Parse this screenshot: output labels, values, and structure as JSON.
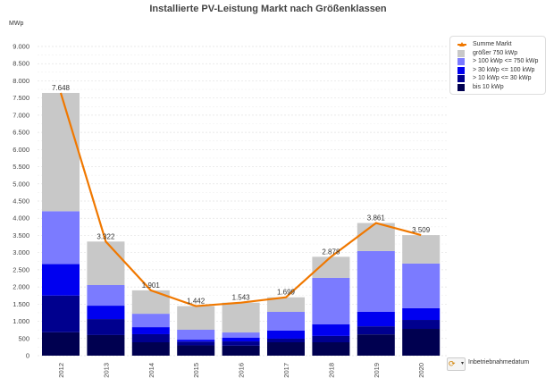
{
  "chart": {
    "title": "Installierte PV-Leistung Markt nach Größenklassen",
    "unit": "MWp",
    "drill_label": "Inbetriebnahmedatum"
  },
  "legend": [
    {
      "label": "Summe Markt",
      "color": "#f07800",
      "kind": "line"
    },
    {
      "label": "größer 750 kWp",
      "color": "#c8c8c8",
      "kind": "box"
    },
    {
      "label": "> 100 kWp <= 750 kWp",
      "color": "#7b7bff",
      "kind": "box"
    },
    {
      "label": "> 30 kWp <= 100 kWp",
      "color": "#0000f0",
      "kind": "box"
    },
    {
      "label": "> 10 kWp <= 30 kWp",
      "color": "#00008e",
      "kind": "box"
    },
    {
      "label": "bis 10 kWp",
      "color": "#000050",
      "kind": "box"
    }
  ],
  "chart_data": {
    "type": "bar",
    "stacked": true,
    "title": "Installierte PV-Leistung Markt nach Größenklassen",
    "xlabel": "",
    "ylabel": "MWp",
    "ylim": [
      0,
      9000
    ],
    "yticks": [
      0,
      500,
      1000,
      1500,
      2000,
      2500,
      3000,
      3500,
      4000,
      4500,
      5000,
      5500,
      6000,
      6500,
      7000,
      7500,
      8000,
      8500,
      9000
    ],
    "ytick_labels": [
      "0",
      "500",
      "1.000",
      "1.500",
      "2.000",
      "2.500",
      "3.000",
      "3.500",
      "4.000",
      "4.500",
      "5.000",
      "5.500",
      "6.000",
      "6.500",
      "7.000",
      "7.500",
      "8.000",
      "8.500",
      "9.000"
    ],
    "grid": true,
    "legend_position": "right",
    "categories": [
      "2012",
      "2013",
      "2014",
      "2015",
      "2016",
      "2017",
      "2018",
      "2019",
      "2020"
    ],
    "series": [
      {
        "name": "bis 10 kWp",
        "color": "#000050",
        "values": [
          680,
          600,
          390,
          300,
          290,
          390,
          390,
          620,
          780
        ]
      },
      {
        "name": "> 10 kWp <= 30 kWp",
        "color": "#00008e",
        "values": [
          1070,
          465,
          235,
          110,
          125,
          105,
          185,
          235,
          260
        ]
      },
      {
        "name": "> 30 kWp <= 100 kWp",
        "color": "#0000f0",
        "values": [
          915,
          390,
          205,
          55,
          105,
          235,
          335,
          420,
          340
        ]
      },
      {
        "name": "> 100 kWp <= 750 kWp",
        "color": "#7b7bff",
        "values": [
          1540,
          600,
          390,
          290,
          155,
          545,
          1355,
          1770,
          1300
        ]
      },
      {
        "name": "größer 750 kWp",
        "color": "#c8c8c8",
        "values": [
          3443,
          1267,
          681,
          687,
          868,
          424,
          613,
          816,
          829
        ]
      }
    ],
    "line": {
      "name": "Summe Markt",
      "color": "#f07800",
      "values": [
        7648,
        3322,
        1901,
        1442,
        1543,
        1699,
        2878,
        3861,
        3509
      ],
      "labels": [
        "7.648",
        "3.322",
        "1.901",
        "1.442",
        "1.543",
        "1.699",
        "2.878",
        "3.861",
        "3.509"
      ]
    }
  }
}
